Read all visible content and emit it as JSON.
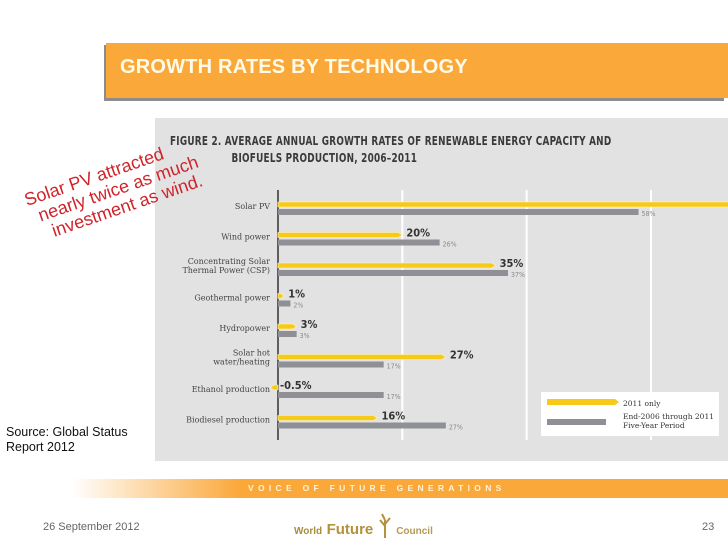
{
  "slide": {
    "title": "GROWTH RATES BY TECHNOLOGY",
    "annotation": [
      "Solar PV attracted",
      "nearly twice as much",
      "investment as wind."
    ],
    "source": [
      "Source: Global Status",
      "Report 2012"
    ],
    "footer_tagline": "VOICE OF FUTURE GENERATIONS",
    "date": "26 September 2012",
    "page_number": "23",
    "logo": {
      "word1": "World",
      "word2": "Future",
      "word3": "Council"
    },
    "colors": {
      "accent": "#fba83a",
      "annotation": "#d0232a",
      "series_2011": "#f7c918",
      "series_5yr": "#8e9096"
    }
  },
  "chart_data": {
    "type": "bar",
    "orientation": "horizontal",
    "title_line1": "FIGURE 2. AVERAGE ANNUAL GROWTH RATES OF RENEWABLE ENERGY CAPACITY AND",
    "title_line2": "BIOFUELS PRODUCTION, 2006–2011",
    "categories": [
      [
        "Solar PV"
      ],
      [
        "Wind power"
      ],
      [
        "Concentrating Solar",
        "Thermal Power (CSP)"
      ],
      [
        "Geothermal power"
      ],
      [
        "Hydropower"
      ],
      [
        "Solar hot",
        "water/heating"
      ],
      [
        "Ethanol production"
      ],
      [
        "Biodiesel production"
      ]
    ],
    "series": [
      {
        "name": "2011 only",
        "values": [
          74,
          20,
          35,
          1,
          3,
          27,
          -0.5,
          16
        ],
        "labels": [
          "74%",
          "20%",
          "35%",
          "1%",
          "3%",
          "27%",
          "-0.5%",
          "16%"
        ]
      },
      {
        "name": "End-2006 through 2011 Five-Year Period",
        "values": [
          58,
          26,
          37,
          2,
          3,
          17,
          17,
          27
        ],
        "labels": [
          "58%",
          "26%",
          "37%",
          "2%",
          "3%",
          "17%",
          "17%",
          "27%"
        ]
      }
    ],
    "xlim": [
      0,
      80
    ],
    "gridlines": [
      20,
      40,
      60,
      80
    ],
    "grid": true,
    "legend_position": "bottom-right",
    "legend": [
      "2011 only",
      "End-2006 through 2011",
      "Five-Year Period"
    ]
  }
}
